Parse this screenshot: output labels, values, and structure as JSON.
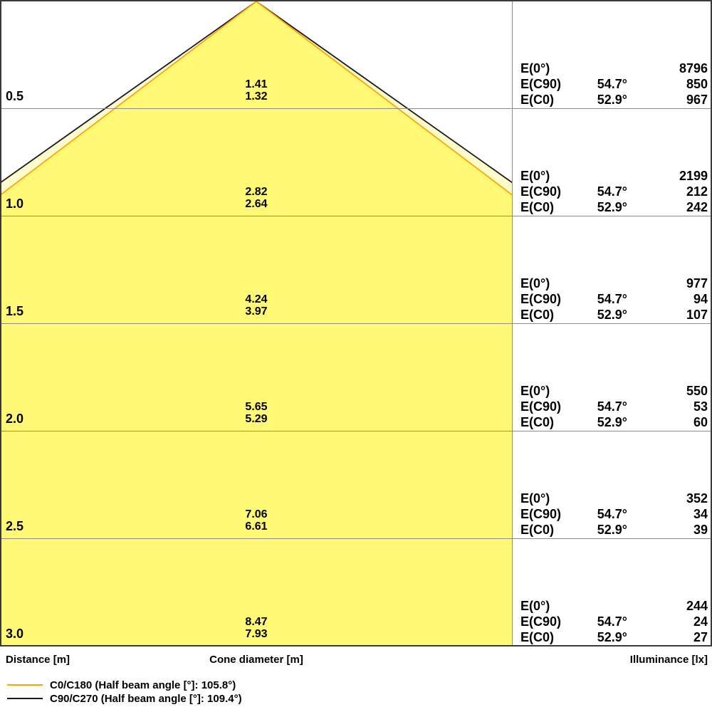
{
  "chart_data": {
    "type": "area",
    "subtype": "luminaire_light_cone_diagram",
    "columns": {
      "distance": "Distance [m]",
      "cone_diameter": "Cone diameter [m]",
      "illuminance": "Illuminance [lx]"
    },
    "illuminance_row_labels": [
      "E(0°)",
      "E(C90)",
      "E(C0)"
    ],
    "half_beam_angles": {
      "c0_c180_deg": 105.8,
      "c90_c270_deg": 109.4
    },
    "legend": [
      {
        "series": "C0/C180",
        "label": "C0/C180 (Half beam angle [°]: 105.8°)",
        "color": "#FFA500"
      },
      {
        "series": "C90/C270",
        "label": "C90/C270 (Half beam angle [°]: 109.4°)",
        "color": "#1A1A1A"
      }
    ],
    "rows": [
      {
        "distance": "0.5",
        "diameter_c90": "1.41",
        "diameter_c0": "1.32",
        "e0": "8796",
        "ec90_angle": "54.7°",
        "ec90": "850",
        "ec0_angle": "52.9°",
        "ec0": "967"
      },
      {
        "distance": "1.0",
        "diameter_c90": "2.82",
        "diameter_c0": "2.64",
        "e0": "2199",
        "ec90_angle": "54.7°",
        "ec90": "212",
        "ec0_angle": "52.9°",
        "ec0": "242"
      },
      {
        "distance": "1.5",
        "diameter_c90": "4.24",
        "diameter_c0": "3.97",
        "e0": "977",
        "ec90_angle": "54.7°",
        "ec90": "94",
        "ec0_angle": "52.9°",
        "ec0": "107"
      },
      {
        "distance": "2.0",
        "diameter_c90": "5.65",
        "diameter_c0": "5.29",
        "e0": "550",
        "ec90_angle": "54.7°",
        "ec90": "53",
        "ec0_angle": "52.9°",
        "ec0": "60"
      },
      {
        "distance": "2.5",
        "diameter_c90": "7.06",
        "diameter_c0": "6.61",
        "e0": "352",
        "ec90_angle": "54.7°",
        "ec90": "34",
        "ec0_angle": "52.9°",
        "ec0": "39"
      },
      {
        "distance": "3.0",
        "diameter_c90": "8.47",
        "diameter_c0": "7.93",
        "e0": "244",
        "ec90_angle": "54.7°",
        "ec90": "24",
        "ec0_angle": "52.9°",
        "ec0": "27"
      }
    ],
    "colors": {
      "cone_fill_inner": "#FFF975",
      "cone_fill_outer": "#FFFCCC",
      "c0_line": "#FFA500",
      "c90_line": "#1A1A1A",
      "grid_line": "#8C8C8C",
      "frame_border": "#3B3B3B"
    },
    "layout_hints": {
      "distance_axis_values_m": [
        0.5,
        1.0,
        1.5,
        2.0,
        2.5,
        3.0
      ],
      "legend_position": "bottom-left",
      "grid": "horizontal rows per 0.5 m"
    }
  }
}
